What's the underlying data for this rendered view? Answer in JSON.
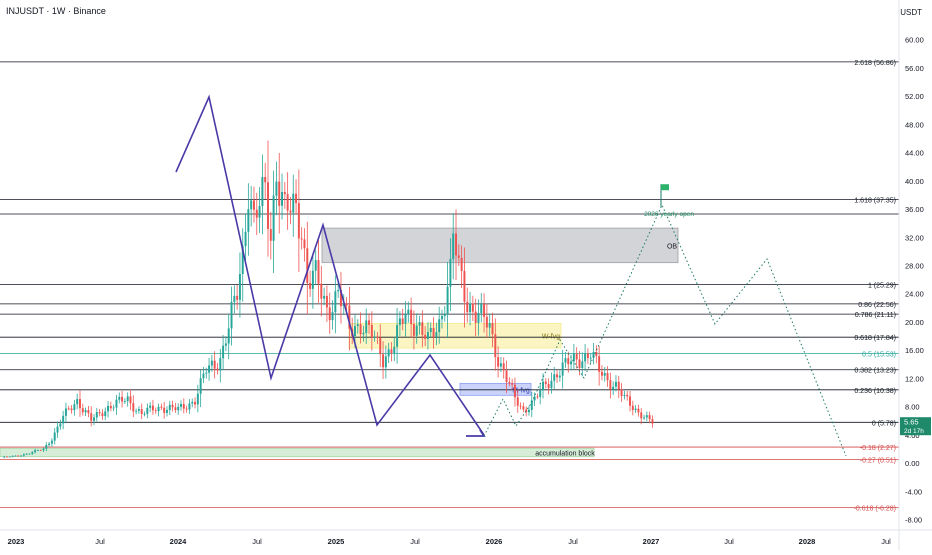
{
  "header": {
    "title": "INJUSDT · 1W · Binance",
    "currency": "USDT"
  },
  "price_badge": {
    "price": "5.65",
    "countdown": "2d 17h"
  },
  "chart_data": {
    "type": "candlestick",
    "ylim": [
      -9.2,
      63.5
    ],
    "price_axis_ticks": [
      "60.00",
      "56.00",
      "52.00",
      "48.00",
      "44.00",
      "40.00",
      "36.00",
      "32.00",
      "28.00",
      "24.00",
      "20.00",
      "16.00",
      "12.00",
      "8.00",
      "4.00",
      "0.00",
      "-4.00",
      "-8.00"
    ],
    "time_axis_ticks": [
      "2023",
      "Jul",
      "2024",
      "Jul",
      "2025",
      "Jul",
      "2026",
      "Jul",
      "2027",
      "Jul",
      "2028",
      "Jul"
    ],
    "fib_levels": [
      {
        "label": "2.618 (56.86)",
        "price": 56.86,
        "color": "#131722"
      },
      {
        "label": "1.618 (37.35)",
        "price": 37.35,
        "color": "#131722"
      },
      {
        "label": "1 (25.29)",
        "price": 25.29,
        "color": "#131722"
      },
      {
        "label": "0.86 (22.56)",
        "price": 22.56,
        "color": "#131722"
      },
      {
        "label": "0.786 (21.11)",
        "price": 21.11,
        "color": "#131722"
      },
      {
        "label": "0.618 (17.84)",
        "price": 17.84,
        "color": "#131722"
      },
      {
        "label": "0.5 (15.53)",
        "price": 15.53,
        "color": "#26a69a"
      },
      {
        "label": "0.382 (13.23)",
        "price": 13.23,
        "color": "#131722"
      },
      {
        "label": "0.236 (10.38)",
        "price": 10.38,
        "color": "#131722"
      },
      {
        "label": "0 (5.78)",
        "price": 5.78,
        "color": "#131722"
      },
      {
        "label": "-0.18 (2.27)",
        "price": 2.27,
        "color": "#d44a4a"
      },
      {
        "label": "-0.27 (0.51)",
        "price": 0.51,
        "color": "#d44a4a"
      },
      {
        "label": "-0.618 (-6.28)",
        "price": -6.28,
        "color": "#d44a4a"
      }
    ],
    "extra_level_price": 35.3,
    "zones": [
      {
        "label": "OB",
        "color": "#9e9fa6",
        "low": 28.4,
        "high": 33.3
      },
      {
        "label": "W-fvg",
        "color": "#f6ec8f",
        "low": 16.3,
        "high": 19.8
      },
      {
        "label": "M-fvg",
        "color": "#8c9ef3",
        "low": 9.6,
        "high": 11.3
      },
      {
        "label": "accumulation block",
        "color": "#a5d6a7",
        "low": 0.9,
        "high": 2.1
      }
    ],
    "annotation": {
      "text": "2026 yearly open",
      "price": 38.1
    },
    "current_price": 5.65,
    "colors": {
      "up": "#26a69a",
      "down": "#ef5350",
      "pattern": "#4a3aa8",
      "projection": "#1e7a6a"
    }
  }
}
